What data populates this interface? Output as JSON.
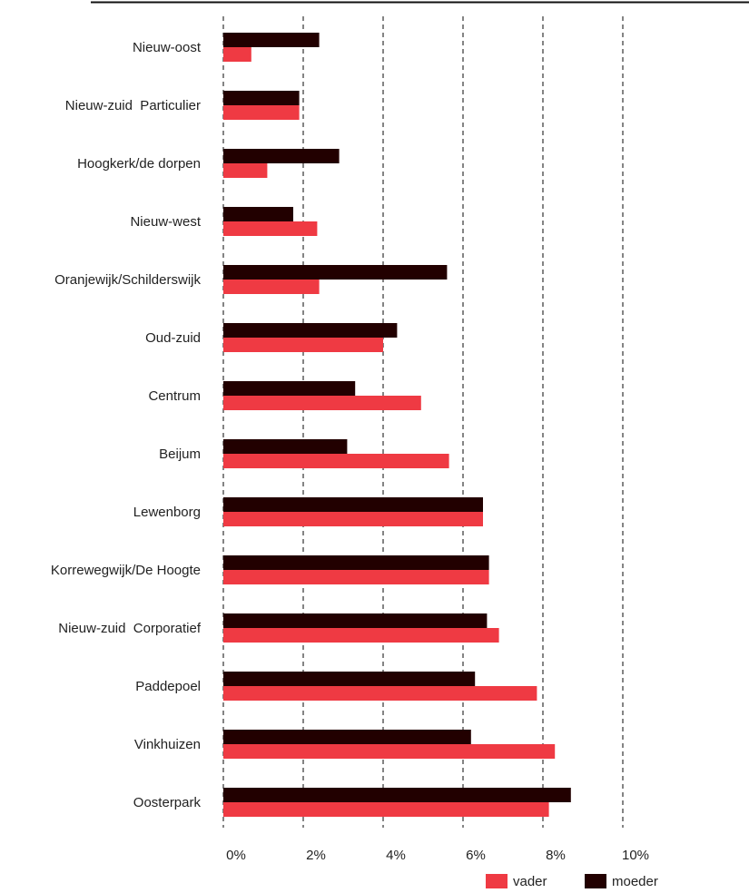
{
  "chart_data": {
    "type": "bar",
    "orientation": "horizontal",
    "categories": [
      "Nieuw-oost",
      "Nieuw-zuid  Particulier",
      "Hoogkerk/de dorpen",
      "Nieuw-west",
      "Oranjewijk/Schilderswijk",
      "Oud-zuid",
      "Centrum",
      "Beijum",
      "Lewenborg",
      "Korrewegwijk/De Hoogte",
      "Nieuw-zuid  Corporatief",
      "Paddepoel",
      "Vinkhuizen",
      "Oosterpark"
    ],
    "series": [
      {
        "name": "moeder",
        "color": "#220000",
        "values": [
          2.4,
          1.9,
          2.9,
          1.75,
          5.6,
          4.35,
          3.3,
          3.1,
          6.5,
          6.65,
          6.6,
          6.3,
          6.2,
          8.7
        ]
      },
      {
        "name": "vader",
        "color": "#ef3a43",
        "values": [
          0.7,
          1.9,
          1.1,
          2.35,
          2.4,
          4.0,
          4.95,
          5.65,
          6.5,
          6.65,
          6.9,
          7.85,
          8.3,
          8.15
        ]
      }
    ],
    "x_ticks": [
      "0%",
      "2%",
      "4%",
      "6%",
      "8%",
      "10%"
    ],
    "xlim": [
      0,
      10
    ],
    "grid": "vertical dashed",
    "legend": {
      "position": "bottom-right",
      "entries": [
        {
          "name": "vader",
          "color": "#ef3a43"
        },
        {
          "name": "moeder",
          "color": "#220000"
        }
      ]
    }
  }
}
